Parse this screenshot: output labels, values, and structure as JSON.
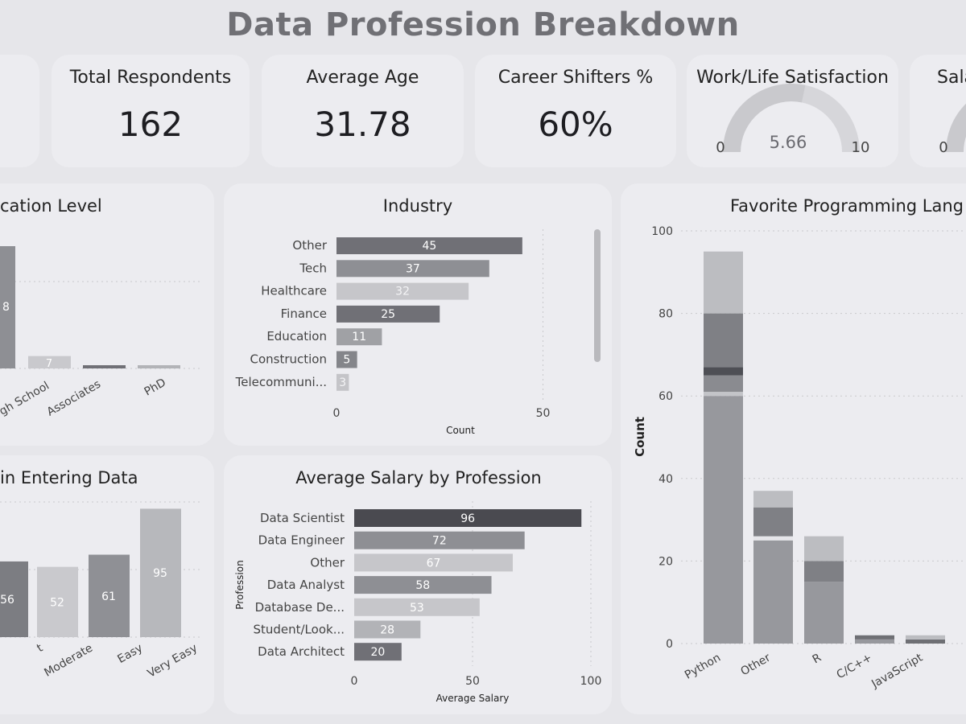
{
  "page_title": "Data Profession Breakdown",
  "kpis": {
    "respondents": {
      "label": "Total Respondents",
      "value": "162"
    },
    "age": {
      "label": "Average Age",
      "value": "31.78"
    },
    "shifters": {
      "label": "Career Shifters %",
      "value": "60%"
    },
    "satisfaction": {
      "label": "Work/Life Satisfaction",
      "value": "5.66",
      "min": "0",
      "max": "10"
    },
    "salary_partial": {
      "label": "Sala",
      "min": "0"
    }
  },
  "chart_data": [
    {
      "type": "bar",
      "title": "cation Level",
      "categories": [
        "gh School",
        "Associates",
        "PhD"
      ],
      "values": [
        7,
        1,
        1
      ],
      "value_labels": [
        "7",
        "",
        ""
      ],
      "ylim": [
        0,
        20
      ],
      "partial_bar": {
        "value": 20
      },
      "partial_bar_label": "8"
    },
    {
      "type": "bar",
      "orientation": "horizontal",
      "title": "Industry",
      "categories": [
        "Other",
        "Tech",
        "Healthcare",
        "Finance",
        "Education",
        "Construction",
        "Telecommuni..."
      ],
      "values": [
        45,
        37,
        32,
        25,
        11,
        5,
        3
      ],
      "xlabel": "Count",
      "xlim": [
        0,
        55
      ],
      "xticks": [
        "0",
        "50"
      ],
      "colors": [
        "#707076",
        "#8e8f94",
        "#c6c6ca",
        "#707076",
        "#a0a1a5",
        "#84858a",
        "#c4c4c8"
      ]
    },
    {
      "type": "bar",
      "title": "in Entering Data",
      "categories": [
        "t",
        "Moderate",
        "Easy",
        "Very Easy"
      ],
      "values": [
        56,
        52,
        61,
        95
      ],
      "ylim": [
        0,
        115
      ],
      "colors": [
        "#7c7d82",
        "#c9c9cd",
        "#8f9095",
        "#b7b8bc"
      ]
    },
    {
      "type": "bar",
      "orientation": "horizontal",
      "title": "Average Salary by Profession",
      "categories": [
        "Data Scientist",
        "Data Engineer",
        "Other",
        "Data Analyst",
        "Database De...",
        "Student/Look...",
        "Data Architect"
      ],
      "values": [
        96,
        72,
        67,
        58,
        53,
        28,
        20
      ],
      "xlabel": "Average Salary",
      "ylabel": "Profession",
      "xlim": [
        0,
        100
      ],
      "xticks": [
        "0",
        "50",
        "100"
      ],
      "colors": [
        "#4a4a50",
        "#8e8f94",
        "#c6c6ca",
        "#8e8f94",
        "#c6c6ca",
        "#b2b3b7",
        "#707076"
      ]
    },
    {
      "type": "bar",
      "stacked": true,
      "title": "Favorite Programming Lang",
      "categories": [
        "Python",
        "Other",
        "R",
        "C/C++",
        "JavaScript"
      ],
      "ylabel": "Count",
      "ylim": [
        0,
        100
      ],
      "yticks": [
        "0",
        "20",
        "40",
        "60",
        "80",
        "100"
      ],
      "stacks": [
        [
          {
            "value": 60,
            "color": "#97989d"
          },
          {
            "value": 1,
            "color": "#c3c4c8"
          },
          {
            "value": 4,
            "color": "#8a8b90"
          },
          {
            "value": 2,
            "color": "#4e4f55"
          },
          {
            "value": 13,
            "color": "#7f8085"
          },
          {
            "value": 15,
            "color": "#bcbdc1"
          }
        ],
        [
          {
            "value": 25,
            "color": "#97989d"
          },
          {
            "value": 1,
            "color": "#e6e6ea"
          },
          {
            "value": 7,
            "color": "#7f8085"
          },
          {
            "value": 4,
            "color": "#bcbdc1"
          }
        ],
        [
          {
            "value": 15,
            "color": "#97989d"
          },
          {
            "value": 5,
            "color": "#7f8085"
          },
          {
            "value": 6,
            "color": "#bcbdc1"
          }
        ],
        [
          {
            "value": 1,
            "color": "#97989d"
          },
          {
            "value": 1,
            "color": "#6e6f74"
          }
        ],
        [
          {
            "value": 1,
            "color": "#6e6f74"
          },
          {
            "value": 1,
            "color": "#bcbdc1"
          }
        ]
      ]
    }
  ]
}
